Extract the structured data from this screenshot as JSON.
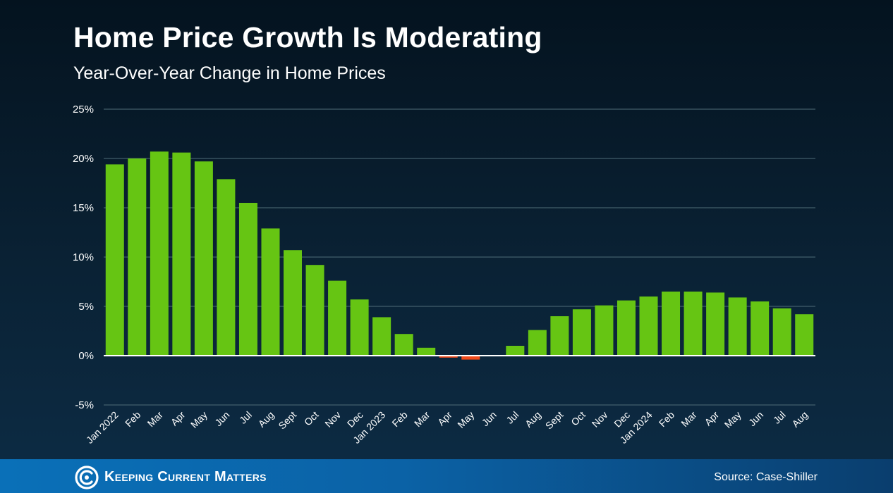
{
  "header": {
    "title": "Home Price Growth Is Moderating",
    "subtitle": "Year-Over-Year Change in Home Prices"
  },
  "footer": {
    "logo_text": "Keeping Current Matters",
    "source": "Source: Case-Shiller"
  },
  "colors": {
    "positive_bar": "#66c513",
    "negative_bar": "#f04a1a",
    "gridline": "#4f6d78",
    "zero_line": "#ffffff",
    "background": "#051826",
    "footer": "#0a70b8"
  },
  "chart_data": {
    "type": "bar",
    "title": "Home Price Growth Is Moderating",
    "subtitle": "Year-Over-Year Change in Home Prices",
    "categories": [
      "Jan 2022",
      "Feb",
      "Mar",
      "Apr",
      "May",
      "Jun",
      "Jul",
      "Aug",
      "Sept",
      "Oct",
      "Nov",
      "Dec",
      "Jan 2023",
      "Feb",
      "Mar",
      "Apr",
      "May",
      "Jun",
      "Jul",
      "Aug",
      "Sept",
      "Oct",
      "Nov",
      "Dec",
      "Jan 2024",
      "Feb",
      "Mar",
      "Apr",
      "May",
      "Jun",
      "Jul",
      "Aug"
    ],
    "values": [
      19.4,
      20.0,
      20.7,
      20.6,
      19.7,
      17.9,
      15.5,
      12.9,
      10.7,
      9.2,
      7.6,
      5.7,
      3.9,
      2.2,
      0.8,
      -0.2,
      -0.4,
      0.0,
      1.0,
      2.6,
      4.0,
      4.7,
      5.1,
      5.6,
      6.0,
      6.5,
      6.5,
      6.4,
      5.9,
      5.5,
      4.8,
      4.2
    ],
    "yticks": [
      "25%",
      "20%",
      "15%",
      "10%",
      "5%",
      "0%",
      "-5%"
    ],
    "ytick_values": [
      25,
      20,
      15,
      10,
      5,
      0,
      -5
    ],
    "ylim": [
      -5,
      25
    ],
    "xlabel": "",
    "ylabel": "",
    "grid": true
  }
}
